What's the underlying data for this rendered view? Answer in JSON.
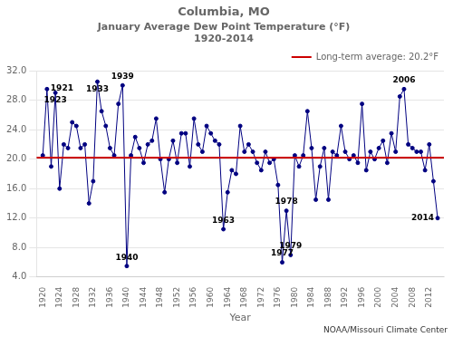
{
  "chart_data": {
    "type": "line",
    "title": "Columbia, MO",
    "subtitle": [
      "January Average Dew Point Temperature (°F)",
      "1920-2014"
    ],
    "x_label": "Year",
    "x": [
      1920,
      1921,
      1922,
      1923,
      1924,
      1925,
      1926,
      1927,
      1928,
      1929,
      1930,
      1931,
      1932,
      1933,
      1934,
      1935,
      1936,
      1937,
      1938,
      1939,
      1940,
      1941,
      1942,
      1943,
      1944,
      1945,
      1946,
      1947,
      1948,
      1949,
      1950,
      1951,
      1952,
      1953,
      1954,
      1955,
      1956,
      1957,
      1958,
      1959,
      1960,
      1961,
      1962,
      1963,
      1964,
      1965,
      1966,
      1967,
      1968,
      1969,
      1970,
      1971,
      1972,
      1973,
      1974,
      1975,
      1976,
      1977,
      1978,
      1979,
      1980,
      1981,
      1982,
      1983,
      1984,
      1985,
      1986,
      1987,
      1988,
      1989,
      1990,
      1991,
      1992,
      1993,
      1994,
      1995,
      1996,
      1997,
      1998,
      1999,
      2000,
      2001,
      2002,
      2003,
      2004,
      2005,
      2006,
      2007,
      2008,
      2009,
      2010,
      2011,
      2012,
      2013,
      2014
    ],
    "series": [
      {
        "color": "#000080",
        "marker": "circle",
        "line_style": "solid",
        "values": [
          20.5,
          29.5,
          19.0,
          29.0,
          16.0,
          22.0,
          21.5,
          25.0,
          24.5,
          21.5,
          22.0,
          14.0,
          17.0,
          30.5,
          26.5,
          24.5,
          21.5,
          20.5,
          27.5,
          30.0,
          5.5,
          20.5,
          23.0,
          21.5,
          19.5,
          22.0,
          22.5,
          25.5,
          20.0,
          15.5,
          20.0,
          22.5,
          19.5,
          23.5,
          23.5,
          19.0,
          25.5,
          22.0,
          21.0,
          24.5,
          23.5,
          22.5,
          22.0,
          10.5,
          15.5,
          18.5,
          18.0,
          24.5,
          21.0,
          22.0,
          21.0,
          19.5,
          18.5,
          21.0,
          19.5,
          20.0,
          16.5,
          6.0,
          13.0,
          7.0,
          20.5,
          19.0,
          20.5,
          26.5,
          21.5,
          14.5,
          19.0,
          21.5,
          14.5,
          21.0,
          20.5,
          24.5,
          21.0,
          20.0,
          20.5,
          19.5,
          27.5,
          18.5,
          21.0,
          20.0,
          21.5,
          22.5,
          19.5,
          23.5,
          21.0,
          28.5,
          29.5,
          22.0,
          21.5,
          21.0,
          21.0,
          18.5,
          22.0,
          17.0,
          12.0
        ]
      }
    ],
    "reference_lines": [
      {
        "name": "Long-term average: 20.2°F",
        "y": 20.2,
        "color": "#CC0000"
      }
    ],
    "annotations": [
      {
        "text": "1921",
        "x": 1921,
        "y": 29.5
      },
      {
        "text": "1923",
        "x": 1923,
        "y": 29.0
      },
      {
        "text": "1933",
        "x": 1933,
        "y": 30.5
      },
      {
        "text": "1939",
        "x": 1939,
        "y": 30.0
      },
      {
        "text": "1940",
        "x": 1940,
        "y": 5.5
      },
      {
        "text": "1963",
        "x": 1963,
        "y": 10.5
      },
      {
        "text": "1977",
        "x": 1977,
        "y": 6.0
      },
      {
        "text": "1978",
        "x": 1978,
        "y": 13.0
      },
      {
        "text": "1979",
        "x": 1979,
        "y": 7.0
      },
      {
        "text": "2006",
        "x": 2006,
        "y": 29.5
      },
      {
        "text": "2014",
        "x": 2014,
        "y": 12.0
      }
    ],
    "note": "NOAA/Missouri Climate Center",
    "xlim": [
      1918.5,
      2015.5
    ],
    "xticks": [
      1920,
      1924,
      1928,
      1932,
      1936,
      1940,
      1944,
      1948,
      1952,
      1956,
      1960,
      1964,
      1968,
      1972,
      1976,
      1980,
      1984,
      1988,
      1992,
      1996,
      2000,
      2004,
      2008,
      2012
    ],
    "ylim": [
      4.0,
      32.0
    ],
    "yticks": [
      {
        "value": 4,
        "label": "4.0"
      },
      {
        "value": 8,
        "label": "8.0"
      },
      {
        "value": 12,
        "label": "12.0"
      },
      {
        "value": 16,
        "label": "16.0"
      },
      {
        "value": 20,
        "label": "20.0"
      },
      {
        "value": 24,
        "label": "24.0"
      },
      {
        "value": 28,
        "label": "28.0"
      },
      {
        "value": 32,
        "label": "32.0"
      }
    ],
    "grid": "y",
    "legend": "top"
  }
}
